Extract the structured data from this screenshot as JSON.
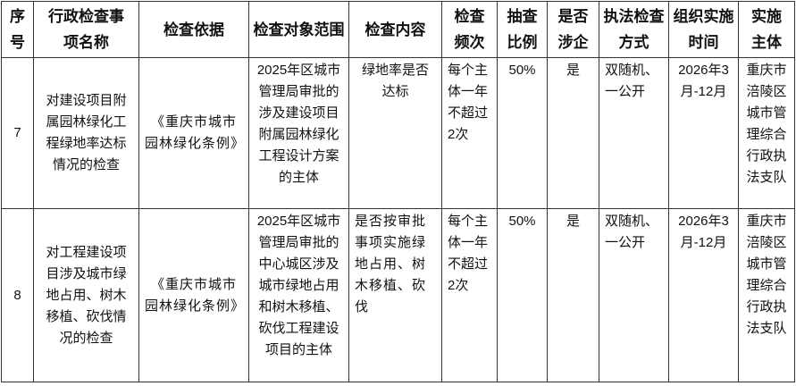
{
  "table": {
    "headers": [
      "序号",
      "行政检查事项名称",
      "检查依据",
      "检查对象范围",
      "检查内容",
      "检查频次",
      "抽查比例",
      "是否涉企",
      "执法检查方式",
      "组织实施时间",
      "实施主体"
    ],
    "rows": [
      [
        "7",
        "对建设项目附属园林绿化工程绿地率达标情况的检查",
        "《重庆市城市园林绿化条例》",
        "2025年区城市管理局审批的涉及建设项目附属园林绿化工程设计方案的主体",
        "绿地率是否达标",
        "每个主体一年不超过2次",
        "50%",
        "是",
        "双随机、一公开",
        "2026年3月-12月",
        "重庆市涪陵区城市管理综合行政执法支队"
      ],
      [
        "8",
        "对工程建设项目涉及城市绿地占用、树木移植、砍伐情况的检查",
        "《重庆市城市园林绿化条例》",
        "2025年区城市管理局审批的中心城区涉及城市绿地占用和树木移植、砍伐工程建设项目的主体",
        "是否按审批事项实施绿地占用、树木移植、砍伐",
        "每个主体一年不超过2次",
        "50%",
        "是",
        "双随机、一公开",
        "2026年3月-12月",
        "重庆市涪陵区城市管理综合行政执法支队"
      ]
    ]
  }
}
